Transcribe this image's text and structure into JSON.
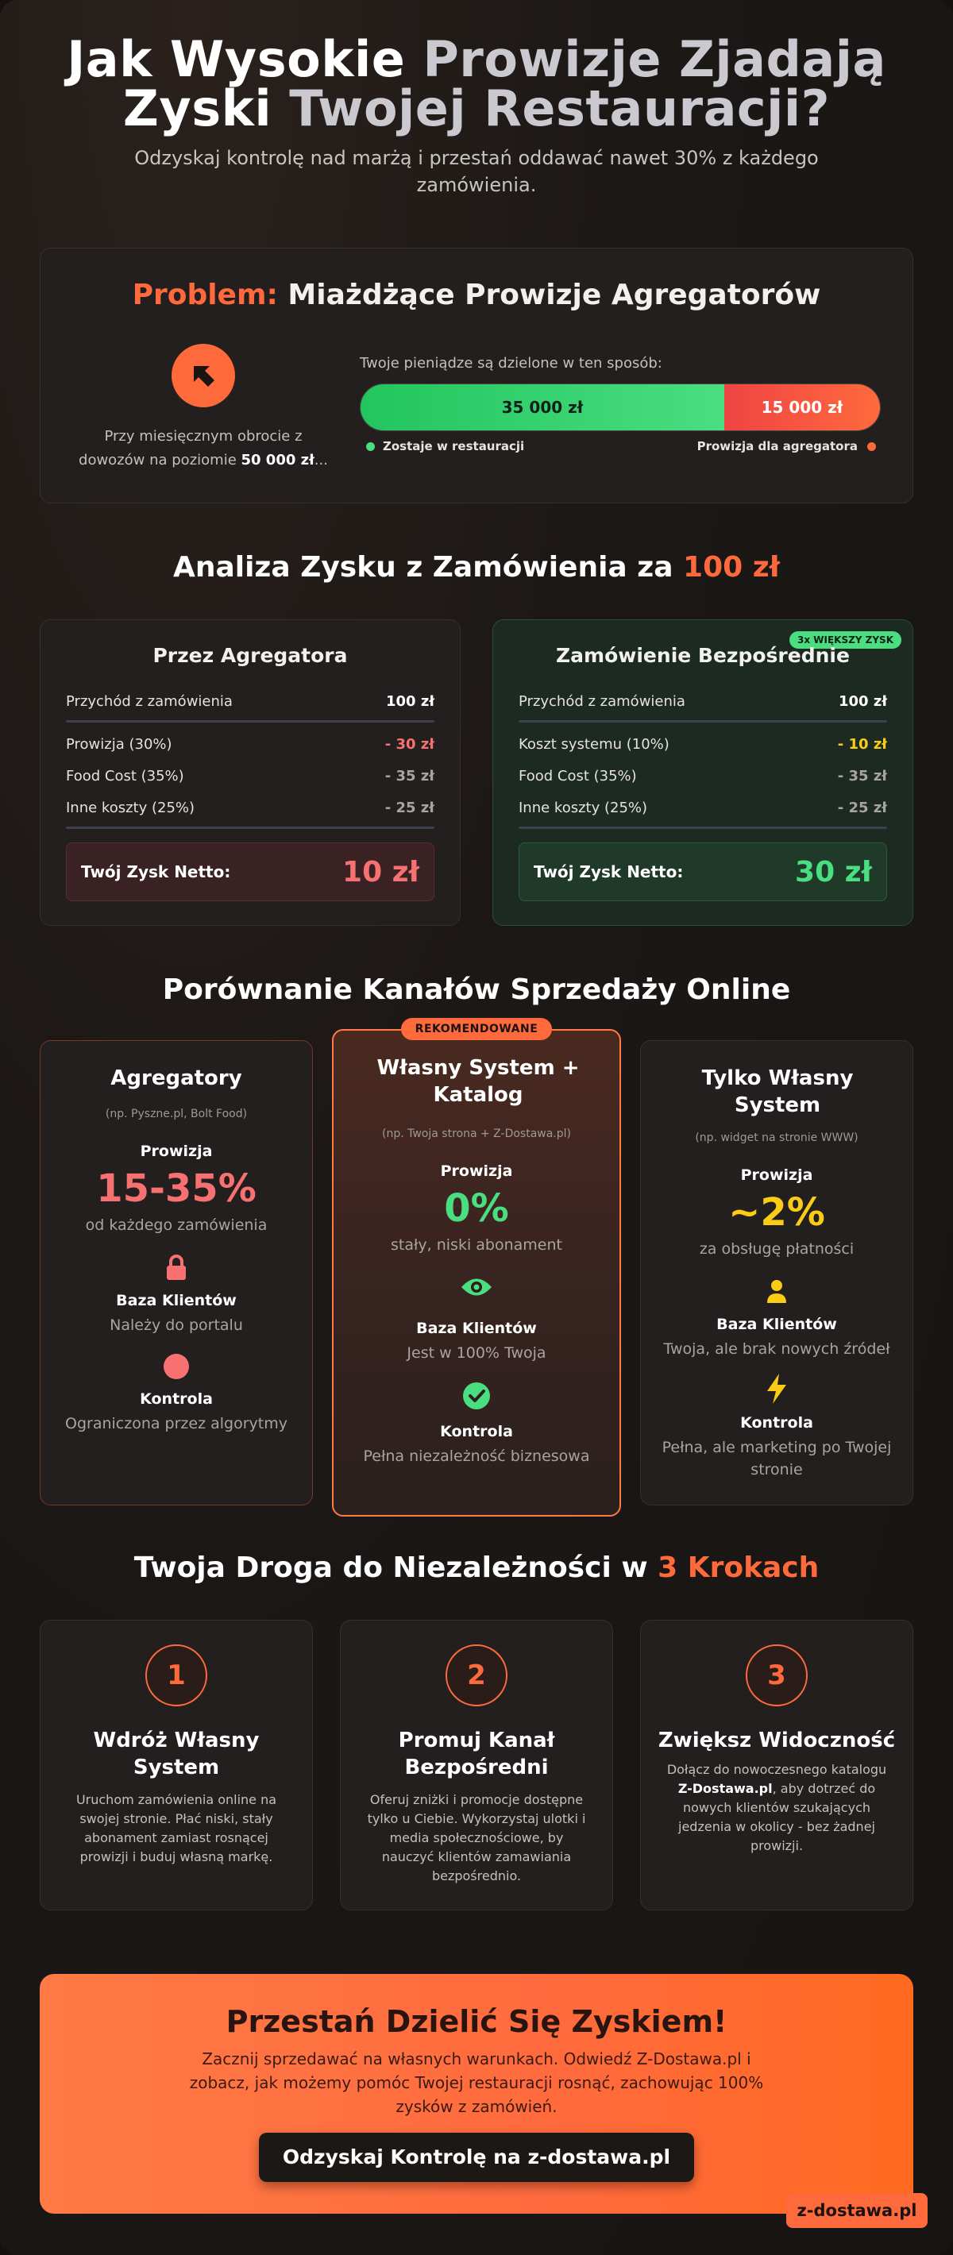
{
  "hero": {
    "title_line1_white": "Jak Wysokie ",
    "title_line1_gray": "Prowizje Zjadają",
    "title_line2_white": "Zyski ",
    "title_line2_gray": "Twojej Restauracji?",
    "subtitle": "Odzyskaj kontrolę nad marżą i przestań oddawać nawet 30% z każdego zamówienia."
  },
  "problem": {
    "title_accent": "Problem:",
    "title_rest": " Miażdżące Prowizje Agregatorów",
    "left_text_before": "Przy miesięcznym obrocie z dowozów na poziomie ",
    "left_text_bold": "50 000 zł",
    "left_text_after": "...",
    "split_label": "Twoje pieniądze są dzielone w ten sposób:",
    "green_amount": "35 000 zł",
    "red_amount": "15 000 zł",
    "green_share": 0.7,
    "legend_left": "Zostaje w restauracji",
    "legend_right": "Prowizja dla agregatora"
  },
  "analysis": {
    "heading": "Analiza Zysku z Zamówienia za ",
    "heading_accent": "100 zł",
    "aggregator": {
      "title": "Przez Agregatora",
      "rows": [
        {
          "label": "Przychód z zamówienia",
          "value": "100 zł"
        },
        {
          "label": "Prowizja (30%)",
          "value": "- 30 zł"
        },
        {
          "label": "Food Cost (35%)",
          "value": "- 35 zł"
        },
        {
          "label": "Inne koszty (25%)",
          "value": "- 25 zł"
        }
      ],
      "total_label": "Twój Zysk Netto:",
      "total_value": "10 zł"
    },
    "direct": {
      "badge": "3x WIĘKSZY ZYSK",
      "title": "Zamówienie Bezpośrednie",
      "rows": [
        {
          "label": "Przychód z zamówienia",
          "value": "100 zł"
        },
        {
          "label": "Koszt systemu (10%)",
          "value": "- 10 zł"
        },
        {
          "label": "Food Cost (35%)",
          "value": "- 35 zł"
        },
        {
          "label": "Inne koszty (25%)",
          "value": "- 25 zł"
        }
      ],
      "total_label": "Twój Zysk Netto:",
      "total_value": "30 zł"
    }
  },
  "channels": {
    "heading": "Porównanie Kanałów Sprzedaży Online",
    "recommended_badge": "REKOMENDOWANE",
    "items": [
      {
        "title": "Agregatory",
        "note": "(np. Pyszne.pl, Bolt Food)",
        "commission_label": "Prowizja",
        "commission_value": "15-35%",
        "commission_desc": "od każdego zamówienia",
        "base_label": "Baza Klientów",
        "base_desc": "Należy do portalu",
        "control_label": "Kontrola",
        "control_desc": "Ograniczona przez algorytmy"
      },
      {
        "title": "Własny System + Katalog",
        "note": "(np. Twoja strona + Z-Dostawa.pl)",
        "commission_label": "Prowizja",
        "commission_value": "0%",
        "commission_desc": "stały, niski abonament",
        "base_label": "Baza Klientów",
        "base_desc": "Jest w 100% Twoja",
        "control_label": "Kontrola",
        "control_desc": "Pełna niezależność biznesowa"
      },
      {
        "title": "Tylko Własny System",
        "note": "(np. widget na stronie WWW)",
        "commission_label": "Prowizja",
        "commission_value": "~2%",
        "commission_desc": "za obsługę płatności",
        "base_label": "Baza Klientów",
        "base_desc": "Twoja, ale brak nowych źródeł",
        "control_label": "Kontrola",
        "control_desc": "Pełna, ale marketing po Twojej stronie"
      }
    ]
  },
  "steps": {
    "heading": "Twoja Droga do Niezależności w ",
    "heading_accent": "3 Krokach",
    "items": [
      {
        "num": "1",
        "title": "Wdróż Własny System",
        "text": "Uruchom zamówienia online na swojej stronie. Płać niski, stały abonament zamiast rosnącej prowizji i buduj własną markę."
      },
      {
        "num": "2",
        "title": "Promuj Kanał Bezpośredni",
        "text": "Oferuj zniżki i promocje dostępne tylko u Ciebie. Wykorzystaj ulotki i media społecznościowe, by nauczyć klientów zamawiania bezpośrednio."
      },
      {
        "num": "3",
        "title": "Zwiększ Widoczność",
        "text_before": "Dołącz do nowoczesnego katalogu ",
        "text_bold": "Z-Dostawa.pl",
        "text_after": ", aby dotrzeć do nowych klientów szukających jedzenia w okolicy - bez żadnej prowizji."
      }
    ]
  },
  "cta": {
    "title": "Przestań Dzielić Się Zyskiem!",
    "text": "Zacznij sprzedawać na własnych warunkach. Odwiedź Z-Dostawa.pl i zobacz, jak możemy pomóc Twojej restauracji rosnąć, zachowując 100% zysków z zamówień.",
    "button": "Odzyskaj Kontrolę na z-dostawa.pl"
  },
  "brand_badge": "z-dostawa.pl",
  "colors": {
    "accent": "#ff6a3d",
    "green": "#4ade80",
    "red": "#f87171",
    "yellow": "#facc15"
  },
  "icons": {
    "problem": "arrow-up-left-icon",
    "aggregator_base": "lock-icon",
    "aggregator_control": "circle-icon",
    "own_base": "eye-icon",
    "own_control": "check-circle-icon",
    "only_base": "user-icon",
    "only_control": "bolt-icon"
  }
}
